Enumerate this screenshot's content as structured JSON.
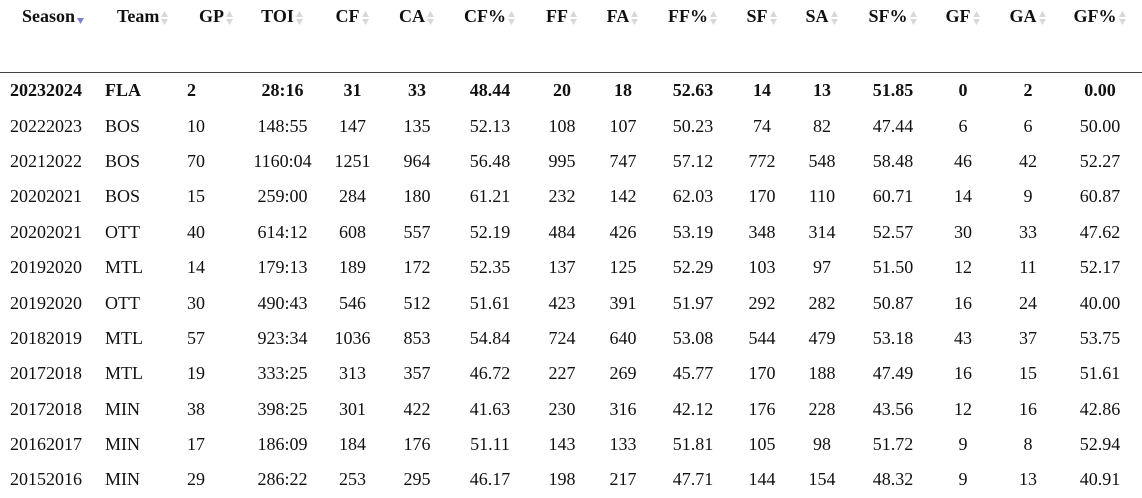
{
  "table": {
    "headers": [
      "Season",
      "Team",
      "GP",
      "TOI",
      "CF",
      "CA",
      "CF%",
      "FF",
      "FA",
      "FF%",
      "SF",
      "SA",
      "SF%",
      "GF",
      "GA",
      "GF%"
    ],
    "rows": [
      [
        "20232024",
        "FLA",
        "2",
        "28:16",
        "31",
        "33",
        "48.44",
        "20",
        "18",
        "52.63",
        "14",
        "13",
        "51.85",
        "0",
        "2",
        "0.00"
      ],
      [
        "20222023",
        "BOS",
        "10",
        "148:55",
        "147",
        "135",
        "52.13",
        "108",
        "107",
        "50.23",
        "74",
        "82",
        "47.44",
        "6",
        "6",
        "50.00"
      ],
      [
        "20212022",
        "BOS",
        "70",
        "1160:04",
        "1251",
        "964",
        "56.48",
        "995",
        "747",
        "57.12",
        "772",
        "548",
        "58.48",
        "46",
        "42",
        "52.27"
      ],
      [
        "20202021",
        "BOS",
        "15",
        "259:00",
        "284",
        "180",
        "61.21",
        "232",
        "142",
        "62.03",
        "170",
        "110",
        "60.71",
        "14",
        "9",
        "60.87"
      ],
      [
        "20202021",
        "OTT",
        "40",
        "614:12",
        "608",
        "557",
        "52.19",
        "484",
        "426",
        "53.19",
        "348",
        "314",
        "52.57",
        "30",
        "33",
        "47.62"
      ],
      [
        "20192020",
        "MTL",
        "14",
        "179:13",
        "189",
        "172",
        "52.35",
        "137",
        "125",
        "52.29",
        "103",
        "97",
        "51.50",
        "12",
        "11",
        "52.17"
      ],
      [
        "20192020",
        "OTT",
        "30",
        "490:43",
        "546",
        "512",
        "51.61",
        "423",
        "391",
        "51.97",
        "292",
        "282",
        "50.87",
        "16",
        "24",
        "40.00"
      ],
      [
        "20182019",
        "MTL",
        "57",
        "923:34",
        "1036",
        "853",
        "54.84",
        "724",
        "640",
        "53.08",
        "544",
        "479",
        "53.18",
        "43",
        "37",
        "53.75"
      ],
      [
        "20172018",
        "MTL",
        "19",
        "333:25",
        "313",
        "357",
        "46.72",
        "227",
        "269",
        "45.77",
        "170",
        "188",
        "47.49",
        "16",
        "15",
        "51.61"
      ],
      [
        "20172018",
        "MIN",
        "38",
        "398:25",
        "301",
        "422",
        "41.63",
        "230",
        "316",
        "42.12",
        "176",
        "228",
        "43.56",
        "12",
        "16",
        "42.86"
      ],
      [
        "20162017",
        "MIN",
        "17",
        "186:09",
        "184",
        "176",
        "51.11",
        "143",
        "133",
        "51.81",
        "105",
        "98",
        "51.72",
        "9",
        "8",
        "52.94"
      ],
      [
        "20152016",
        "MIN",
        "29",
        "286:22",
        "253",
        "295",
        "46.17",
        "198",
        "217",
        "47.71",
        "144",
        "154",
        "48.32",
        "9",
        "13",
        "40.91"
      ]
    ]
  }
}
